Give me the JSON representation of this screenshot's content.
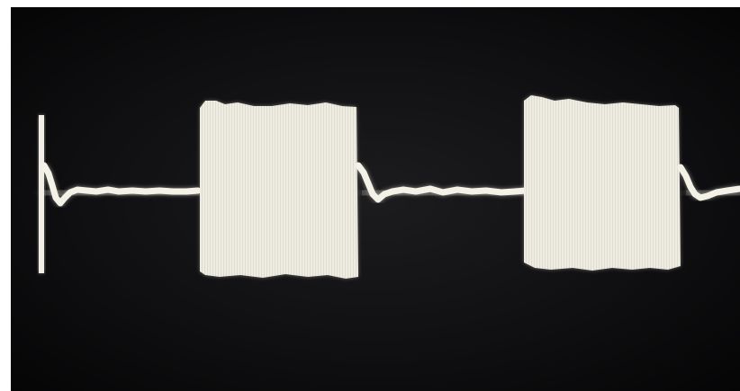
{
  "image": {
    "type": "oscilloscope-trace-photo",
    "background_color": "#0d0d0f",
    "trace_color": "#f4f1e6",
    "glow_color": "#d9d6cc"
  }
}
